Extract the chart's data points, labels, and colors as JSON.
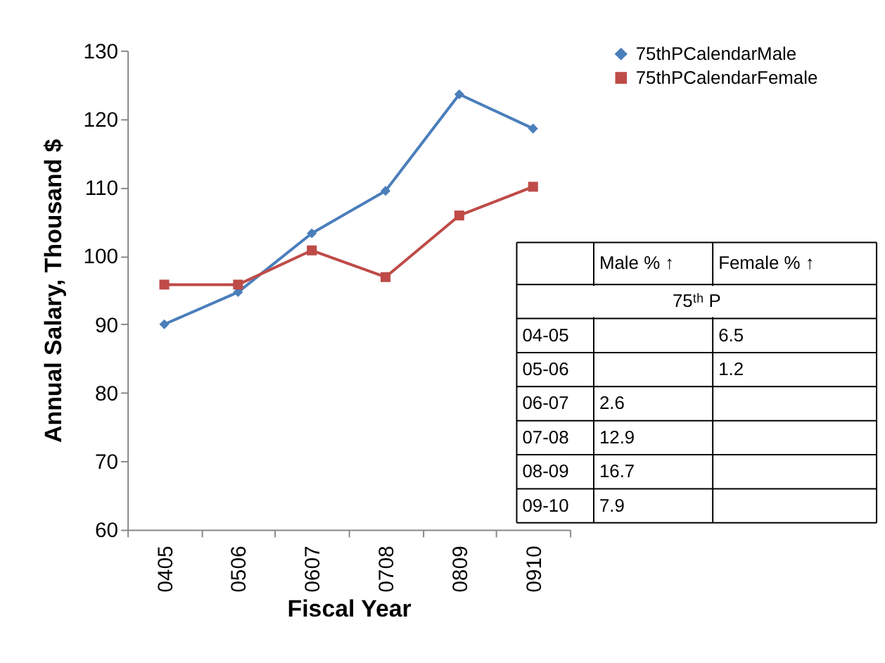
{
  "chart_data": {
    "type": "line",
    "xlabel": "Fiscal Year",
    "ylabel": "Annual Salary, Thousand $",
    "categories": [
      "0405",
      "0506",
      "0607",
      "0708",
      "0809",
      "0910"
    ],
    "series": [
      {
        "name": "75thPCalendarMale",
        "color": "#4a7ebb",
        "marker": "diamond",
        "values": [
          90,
          94.7,
          103.3,
          109.5,
          123.6,
          118.6
        ]
      },
      {
        "name": "75thPCalendarFemale",
        "color": "#be4b48",
        "marker": "square",
        "values": [
          95.8,
          95.8,
          100.8,
          96.9,
          105.9,
          110.1
        ]
      }
    ],
    "ylim": [
      60,
      130
    ],
    "yticks": [
      60,
      70,
      80,
      90,
      100,
      110,
      120,
      130
    ],
    "grid": false,
    "legend": "top right",
    "line_style": "solid",
    "annotations": [
      "Male  % ↑",
      "Female  % ↑",
      "75ᵗʰ P",
      "04-05",
      "6.5",
      "05-06",
      "1.2",
      "06-07",
      "2.6",
      "07-08",
      "12.9",
      "08-09",
      "16.7",
      "09-10",
      "7.9"
    ]
  }
}
